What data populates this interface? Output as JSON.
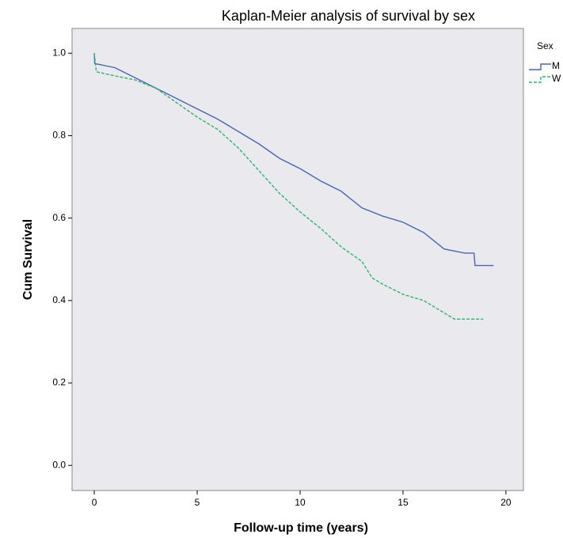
{
  "chart_data": {
    "type": "line",
    "title": "Kaplan-Meier analysis of survival by sex",
    "x_label": "Follow-up time (years)",
    "y_label": "Cum Survival",
    "legend_title": "Sex",
    "xlim": [
      -1.08,
      20.85
    ],
    "ylim": [
      -0.061,
      1.06
    ],
    "xticks": [
      0,
      5,
      10,
      15,
      20
    ],
    "yticks": [
      {
        "value": 0,
        "label": "0.0"
      },
      0.2,
      0.4,
      0.6,
      0.8,
      {
        "value": 1,
        "label": "1.0"
      }
    ],
    "series": [
      {
        "name": "M",
        "color": "#4a64b4",
        "dash": false,
        "x": [
          0,
          0.02,
          1,
          2,
          3,
          4,
          5,
          6,
          7,
          8,
          9,
          10,
          11,
          12,
          13,
          14,
          15,
          16,
          17,
          18,
          18.45,
          18.5,
          19.4
        ],
        "values": [
          1.0,
          0.975,
          0.965,
          0.94,
          0.915,
          0.89,
          0.865,
          0.84,
          0.81,
          0.78,
          0.745,
          0.72,
          0.69,
          0.665,
          0.625,
          0.605,
          0.59,
          0.565,
          0.525,
          0.515,
          0.515,
          0.485,
          0.485
        ]
      },
      {
        "name": "W",
        "color": "#2db36b",
        "dash": true,
        "x": [
          0,
          0.1,
          1,
          2,
          3,
          4,
          5,
          6,
          7,
          8,
          9,
          10,
          11,
          12,
          13,
          13.5,
          14,
          15,
          16,
          17,
          17.5,
          18.9
        ],
        "values": [
          1.0,
          0.955,
          0.945,
          0.935,
          0.915,
          0.88,
          0.845,
          0.815,
          0.77,
          0.715,
          0.66,
          0.615,
          0.575,
          0.53,
          0.495,
          0.455,
          0.44,
          0.415,
          0.4,
          0.37,
          0.355,
          0.355
        ]
      }
    ]
  }
}
